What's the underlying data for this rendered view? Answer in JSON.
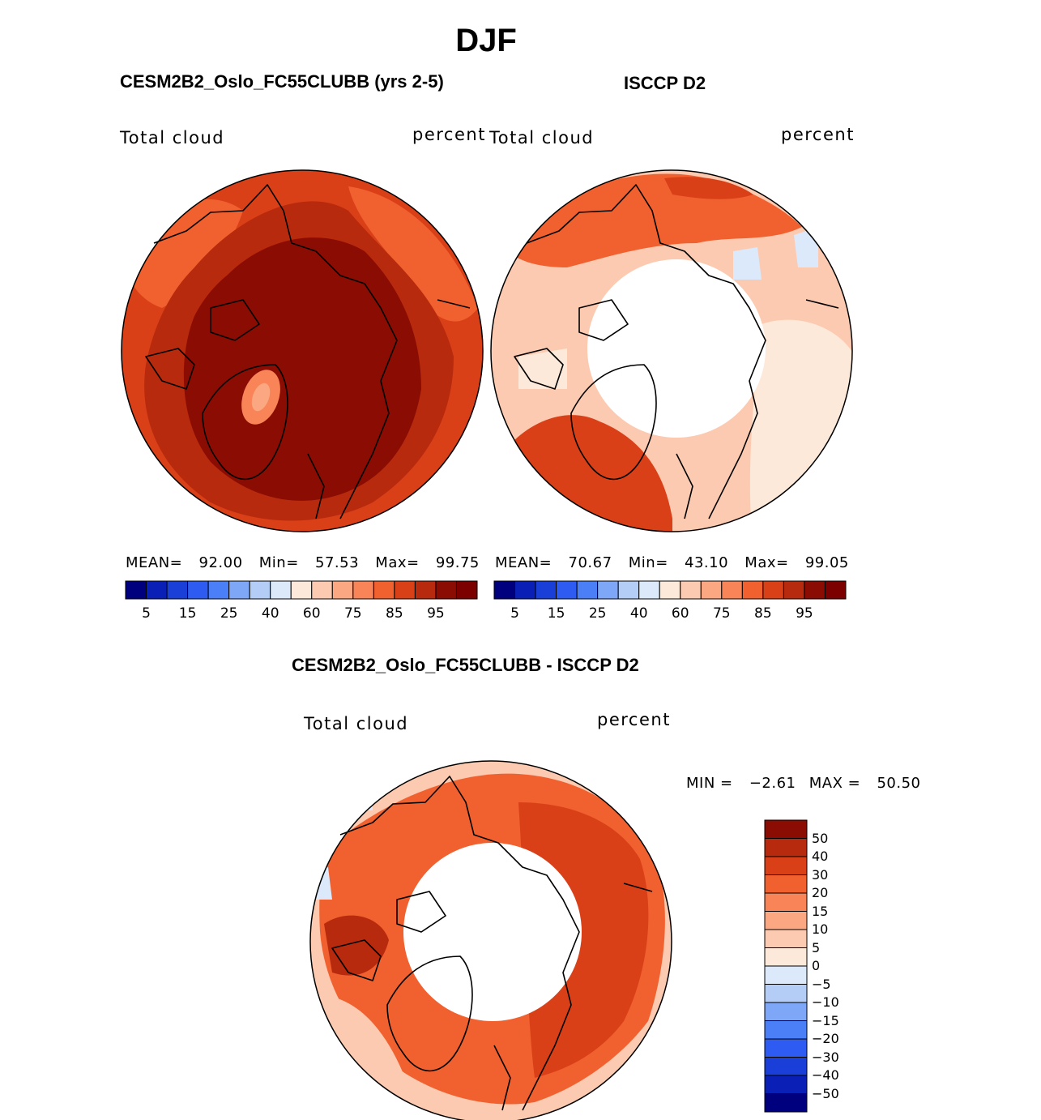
{
  "main_title": "DJF",
  "panels": [
    {
      "title": "CESM2B2_Oslo_FC55CLUBB (yrs 2-5)",
      "variable": "Total cloud",
      "units": "percent",
      "stats": {
        "mean_label": "MEAN=",
        "mean": "92.00",
        "min_label": "Min=",
        "min": "57.53",
        "max_label": "Max=",
        "max": "99.75"
      }
    },
    {
      "title": "ISCCP D2",
      "variable": "Total cloud",
      "units": "percent",
      "stats": {
        "mean_label": "MEAN=",
        "mean": "70.67",
        "min_label": "Min=",
        "min": "43.10",
        "max_label": "Max=",
        "max": "99.05"
      }
    }
  ],
  "diff_panel": {
    "title": "CESM2B2_Oslo_FC55CLUBB - ISCCP D2",
    "variable": "Total cloud",
    "units": "percent",
    "stats": {
      "min_label": "MIN =",
      "min": "−2.61",
      "max_label": "MAX =",
      "max": "50.50"
    }
  },
  "chart_data": [
    {
      "type": "heatmap",
      "title": "CESM2B2_Oslo_FC55CLUBB (yrs 2-5)",
      "projection": "north polar stereographic",
      "variable": "Total cloud",
      "units": "percent",
      "mean": 92.0,
      "min": 57.53,
      "max": 99.75,
      "colorbar_levels": [
        5,
        10,
        15,
        20,
        25,
        30,
        40,
        50,
        60,
        65,
        70,
        75,
        80,
        85,
        90,
        95
      ],
      "colorbar_tick_labels": [
        "5",
        "15",
        "25",
        "40",
        "60",
        "75",
        "85",
        "95"
      ],
      "colorbar_colors": [
        "#00007f",
        "#0a1fb5",
        "#1a3fd9",
        "#2e5cf2",
        "#4a7ff7",
        "#7ea8f7",
        "#b3cdf7",
        "#dce9fa",
        "#fde9d9",
        "#fccab0",
        "#fba882",
        "#f88458",
        "#f1602f",
        "#d94018",
        "#b82a0d",
        "#8a0c03",
        "#7d0000"
      ]
    },
    {
      "type": "heatmap",
      "title": "ISCCP D2",
      "projection": "north polar stereographic",
      "variable": "Total cloud",
      "units": "percent",
      "mean": 70.67,
      "min": 43.1,
      "max": 99.05,
      "missing_region": "north of about 70N (white)",
      "colorbar_levels": [
        5,
        10,
        15,
        20,
        25,
        30,
        40,
        50,
        60,
        65,
        70,
        75,
        80,
        85,
        90,
        95
      ],
      "colorbar_tick_labels": [
        "5",
        "15",
        "25",
        "40",
        "60",
        "75",
        "85",
        "95"
      ]
    },
    {
      "type": "heatmap",
      "title": "CESM2B2_Oslo_FC55CLUBB - ISCCP D2",
      "projection": "north polar stereographic",
      "variable": "Total cloud",
      "units": "percent",
      "min": -2.61,
      "max": 50.5,
      "colorbar_levels": [
        -50,
        -40,
        -30,
        -20,
        -15,
        -10,
        -5,
        0,
        5,
        10,
        15,
        20,
        30,
        40,
        50
      ],
      "colorbar_tick_labels": [
        "50",
        "40",
        "30",
        "20",
        "15",
        "10",
        "5",
        "0",
        "−5",
        "−10",
        "−15",
        "−20",
        "−30",
        "−40",
        "−50"
      ],
      "colorbar_colors_top_to_bottom": [
        "#8a0c03",
        "#b82a0d",
        "#d94018",
        "#f1602f",
        "#f88458",
        "#fba882",
        "#fccab0",
        "#fde9d9",
        "#dce9fa",
        "#b3cdf7",
        "#7ea8f7",
        "#4a7ff7",
        "#2e5cf2",
        "#1a3fd9",
        "#0a1fb5",
        "#00007f"
      ]
    }
  ]
}
